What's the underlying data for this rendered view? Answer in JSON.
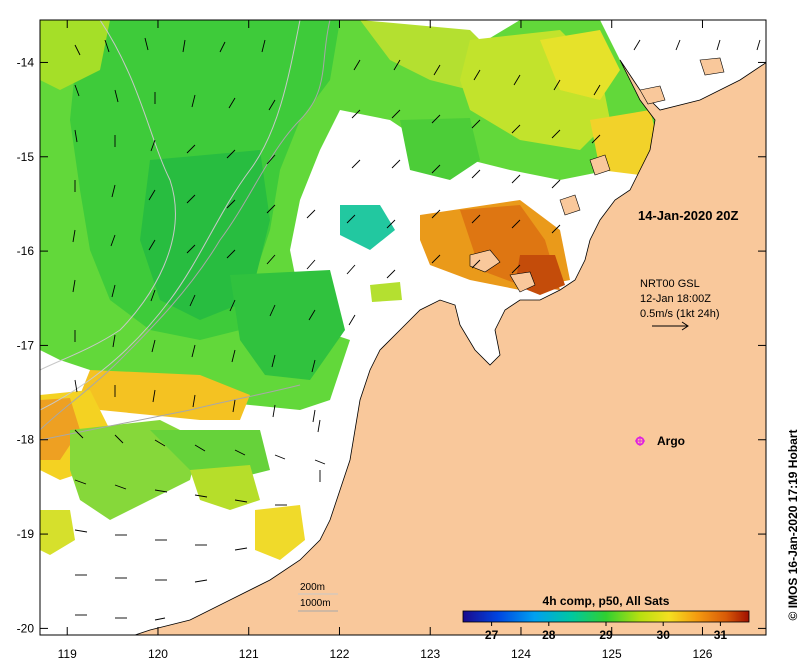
{
  "map": {
    "timestamp": "14-Jan-2020 20Z",
    "current_info": {
      "line1": "NRT00 GSL",
      "line2": "12-Jan 18:00Z",
      "line3": "0.5m/s (1kt 24h)"
    },
    "argo_label": "Argo",
    "isobaths": {
      "shallow": "200m",
      "deep": "1000m"
    },
    "colorbar": {
      "title": "4h comp, p50, All Sats",
      "ticks": [
        "27",
        "28",
        "29",
        "30",
        "31"
      ],
      "range": [
        26.5,
        31.5
      ]
    },
    "credit": "© IMOS 16-Jan-2020 17:19 Hobart",
    "axes": {
      "lon_ticks": [
        "119",
        "120",
        "121",
        "122",
        "123",
        "124",
        "125",
        "126"
      ],
      "lat_ticks": [
        "-14",
        "-15",
        "-16",
        "-17",
        "-18",
        "-19",
        "-20"
      ],
      "lon_range": [
        118.7,
        126.7
      ],
      "lat_range": [
        -20.07,
        -13.55
      ]
    },
    "colors": {
      "land": "#f9c89b",
      "no_data": "#ffffff",
      "argo_marker": "#e020e0",
      "isobath_line": "#a8a8a8"
    }
  }
}
